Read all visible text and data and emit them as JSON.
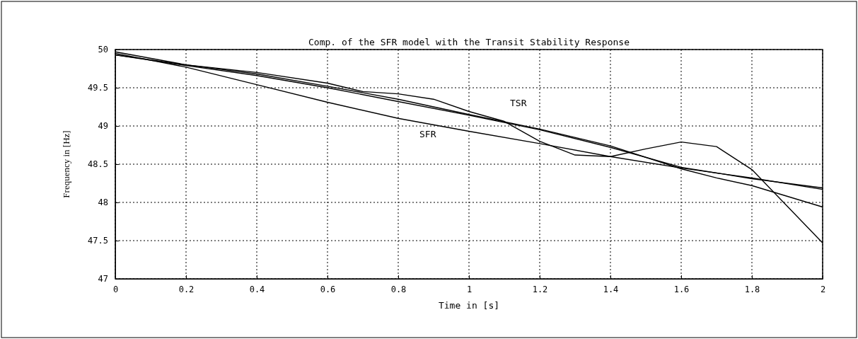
{
  "chart_data": {
    "type": "line",
    "title": "Comp. of the SFR model with the Transit Stability Response",
    "xlabel": "Time in [s]",
    "ylabel": "Frequency in [Hz]",
    "xlim": [
      0,
      2
    ],
    "xticks": [
      0,
      0.2,
      0.4,
      0.6,
      0.8,
      1,
      1.2,
      1.4,
      1.6,
      1.8,
      2
    ],
    "ylim": [
      47,
      50
    ],
    "yticks": [
      47,
      47.5,
      48,
      48.5,
      49,
      49.5,
      50
    ],
    "grid": true,
    "line_style": "solid",
    "series": [
      {
        "name": "TSR",
        "color": "#000000",
        "x": [
          0,
          0.2,
          0.4,
          0.6,
          0.7,
          0.8,
          0.9,
          1.0,
          1.1,
          1.2,
          1.3,
          1.4,
          1.5,
          1.6,
          1.7,
          1.8,
          2.0
        ],
        "values": [
          49.93,
          49.8,
          49.7,
          49.56,
          49.45,
          49.42,
          49.35,
          49.19,
          49.06,
          48.8,
          48.62,
          48.6,
          48.7,
          48.79,
          48.73,
          48.43,
          47.47
        ]
      },
      {
        "name": "SFR",
        "color": "#000000",
        "x": [
          0,
          0.2,
          0.4,
          0.6,
          0.8,
          1.0,
          1.2,
          1.4,
          1.6,
          1.8,
          2.0
        ],
        "values": [
          49.95,
          49.77,
          49.54,
          49.31,
          49.1,
          48.93,
          48.77,
          48.6,
          48.45,
          48.32,
          48.17
        ]
      },
      {
        "color": "#000000",
        "x": [
          0,
          0.2,
          0.4,
          0.6,
          0.8,
          1.0,
          1.2,
          1.4,
          1.6,
          1.7,
          1.8,
          2.0
        ],
        "values": [
          49.97,
          49.8,
          49.68,
          49.52,
          49.35,
          49.15,
          48.96,
          48.74,
          48.44,
          48.32,
          48.22,
          47.94
        ]
      },
      {
        "color": "#000000",
        "x": [
          0,
          0.2,
          0.4,
          0.6,
          0.8,
          1.0,
          1.2,
          1.4,
          1.6,
          1.8,
          2.0
        ],
        "values": [
          49.93,
          49.79,
          49.66,
          49.5,
          49.32,
          49.14,
          48.95,
          48.72,
          48.46,
          48.31,
          48.19
        ]
      }
    ]
  }
}
